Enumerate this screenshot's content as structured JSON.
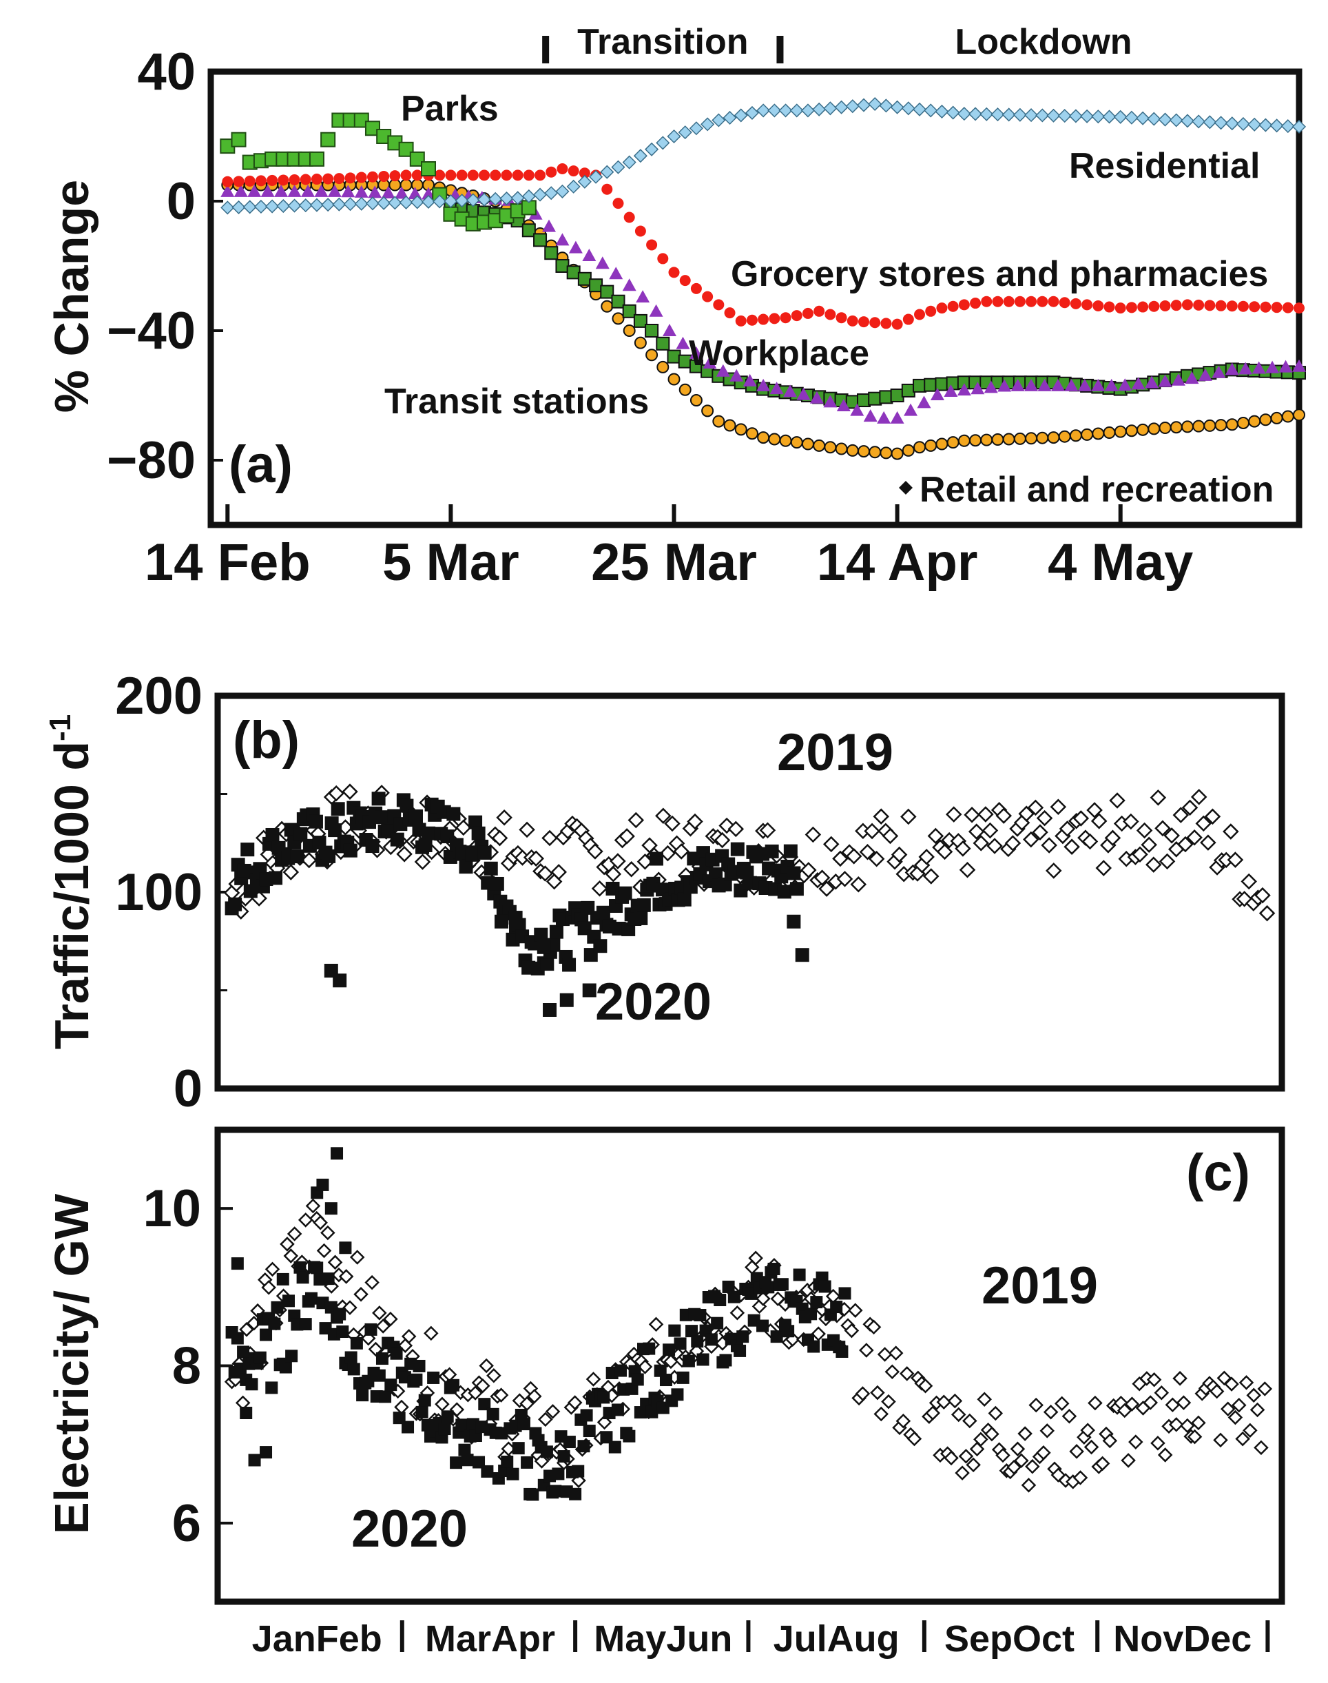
{
  "colors": {
    "parks": "#4cb82e",
    "grocery": "#f01f16",
    "residential": "#9ed2ee",
    "workplace": "#8e35bd",
    "transit": "#3f9a2a",
    "retail_fill": "#f4a71f",
    "retail_edge": "#111111"
  },
  "chart_data": [
    {
      "type": "scatter",
      "panel": "(a)",
      "ylabel": "% Change",
      "ylim": [
        -100,
        40
      ],
      "yticks": [
        40,
        0,
        -40,
        -80
      ],
      "xlim": [
        -1.5,
        96
      ],
      "xticks": [
        {
          "label": "14 Feb",
          "x": 0
        },
        {
          "label": "5 Mar",
          "x": 20
        },
        {
          "label": "25 Mar",
          "x": 40
        },
        {
          "label": "14 Apr",
          "x": 60
        },
        {
          "label": "4 May",
          "x": 80
        }
      ],
      "phases": [
        {
          "label": "Transition",
          "start": 28.5,
          "end": 49.5
        },
        {
          "label": "Lockdown",
          "start": 49.5,
          "end": 96
        }
      ],
      "annotations": {
        "parks": "Parks",
        "residential": "Residential",
        "grocery": "Grocery stores and pharmacies",
        "workplace": "Workplace",
        "transit": "Transit stations",
        "retail": "Retail and recreation"
      },
      "series": [
        {
          "name": "Residential",
          "marker": "diamond",
          "knots": [
            [
              0,
              -2
            ],
            [
              20,
              0
            ],
            [
              26,
              1
            ],
            [
              30,
              3
            ],
            [
              36,
              12
            ],
            [
              40,
              20
            ],
            [
              44,
              25
            ],
            [
              48,
              28
            ],
            [
              52,
              28
            ],
            [
              58,
              30
            ],
            [
              60,
              29
            ],
            [
              66,
              27
            ],
            [
              80,
              26
            ],
            [
              90,
              24
            ],
            [
              96,
              23
            ]
          ]
        },
        {
          "name": "Parks",
          "marker": "square",
          "knots": [
            [
              0,
              17
            ],
            [
              1,
              19
            ],
            [
              2,
              12
            ],
            [
              4,
              13
            ],
            [
              8,
              13
            ],
            [
              10,
              25
            ],
            [
              12,
              25
            ],
            [
              14,
              20
            ],
            [
              16,
              16
            ],
            [
              18,
              10
            ],
            [
              19,
              2
            ],
            [
              20,
              -4
            ],
            [
              22,
              -7
            ],
            [
              24,
              -6
            ],
            [
              26,
              -3
            ],
            [
              27,
              -2
            ]
          ]
        },
        {
          "name": "Grocery stores and pharmacies",
          "marker": "circle",
          "knots": [
            [
              0,
              6
            ],
            [
              10,
              7
            ],
            [
              16,
              8
            ],
            [
              24,
              8
            ],
            [
              28,
              8
            ],
            [
              30,
              10
            ],
            [
              33,
              8
            ],
            [
              36,
              -5
            ],
            [
              40,
              -22
            ],
            [
              44,
              -32
            ],
            [
              46,
              -37
            ],
            [
              50,
              -36
            ],
            [
              53,
              -34
            ],
            [
              56,
              -37
            ],
            [
              60,
              -38
            ],
            [
              62,
              -35
            ],
            [
              64,
              -33
            ],
            [
              68,
              -31
            ],
            [
              74,
              -31
            ],
            [
              80,
              -33
            ],
            [
              86,
              -32
            ],
            [
              96,
              -33
            ]
          ]
        },
        {
          "name": "Workplace",
          "marker": "triangle",
          "knots": [
            [
              0,
              3
            ],
            [
              10,
              3
            ],
            [
              20,
              2
            ],
            [
              26,
              0
            ],
            [
              28,
              -5
            ],
            [
              30,
              -12
            ],
            [
              34,
              -20
            ],
            [
              38,
              -32
            ],
            [
              40,
              -42
            ],
            [
              44,
              -52
            ],
            [
              48,
              -57
            ],
            [
              52,
              -60
            ],
            [
              56,
              -64
            ],
            [
              58,
              -67
            ],
            [
              60,
              -67
            ],
            [
              62,
              -63
            ],
            [
              64,
              -59
            ],
            [
              70,
              -57
            ],
            [
              80,
              -57
            ],
            [
              86,
              -55
            ],
            [
              90,
              -52
            ],
            [
              96,
              -51
            ]
          ]
        },
        {
          "name": "Transit stations",
          "marker": "square",
          "knots": [
            [
              20,
              -2
            ],
            [
              24,
              -4
            ],
            [
              26,
              -6
            ],
            [
              28,
              -12
            ],
            [
              30,
              -20
            ],
            [
              34,
              -28
            ],
            [
              38,
              -40
            ],
            [
              40,
              -48
            ],
            [
              44,
              -54
            ],
            [
              48,
              -58
            ],
            [
              52,
              -60
            ],
            [
              56,
              -62
            ],
            [
              60,
              -60
            ],
            [
              62,
              -57
            ],
            [
              66,
              -56
            ],
            [
              74,
              -56
            ],
            [
              80,
              -58
            ],
            [
              86,
              -54
            ],
            [
              90,
              -52
            ],
            [
              96,
              -53
            ]
          ]
        },
        {
          "name": "Retail and recreation",
          "marker": "circle-edged",
          "knots": [
            [
              0,
              5
            ],
            [
              10,
              5
            ],
            [
              18,
              5
            ],
            [
              24,
              0
            ],
            [
              28,
              -10
            ],
            [
              32,
              -25
            ],
            [
              36,
              -40
            ],
            [
              40,
              -55
            ],
            [
              44,
              -68
            ],
            [
              48,
              -73
            ],
            [
              52,
              -75
            ],
            [
              56,
              -77
            ],
            [
              60,
              -78
            ],
            [
              62,
              -76
            ],
            [
              66,
              -74
            ],
            [
              74,
              -73
            ],
            [
              84,
              -70
            ],
            [
              90,
              -69
            ],
            [
              96,
              -66
            ]
          ]
        }
      ]
    },
    {
      "type": "scatter",
      "panel": "(b)",
      "ylabel": "Traffic/1000 d",
      "ylabel_sup": "-1",
      "ylim": [
        0,
        200
      ],
      "yticks": [
        0,
        100,
        200
      ],
      "xlim": [
        -5,
        370
      ],
      "labels": {
        "y2019": "2019",
        "y2020": "2020"
      },
      "series": [
        {
          "name": "2019",
          "marker": "open-diamond",
          "knots": [
            [
              0,
              100
            ],
            [
              20,
              125
            ],
            [
              40,
              135
            ],
            [
              60,
              132
            ],
            [
              80,
              128
            ],
            [
              100,
              120
            ],
            [
              120,
              118
            ],
            [
              160,
              122
            ],
            [
              200,
              118
            ],
            [
              240,
              125
            ],
            [
              280,
              125
            ],
            [
              320,
              130
            ],
            [
              340,
              135
            ],
            [
              350,
              120
            ],
            [
              365,
              95
            ]
          ],
          "spread": 18
        },
        {
          "name": "2020",
          "marker": "filled-square",
          "knots": [
            [
              0,
              105
            ],
            [
              20,
              125
            ],
            [
              40,
              130
            ],
            [
              60,
              138
            ],
            [
              80,
              128
            ],
            [
              90,
              118
            ],
            [
              100,
              80
            ],
            [
              105,
              75
            ],
            [
              115,
              75
            ],
            [
              125,
              80
            ],
            [
              135,
              90
            ],
            [
              145,
              100
            ],
            [
              150,
              105
            ],
            [
              170,
              110
            ],
            [
              180,
              112
            ],
            [
              200,
              115
            ]
          ],
          "spread": 14
        },
        {
          "name": "2020-outliers",
          "marker": "filled-square",
          "points": [
            [
              35,
              60
            ],
            [
              38,
              55
            ],
            [
              95,
              85
            ],
            [
              100,
              87
            ],
            [
              110,
              72
            ],
            [
              112,
              40
            ],
            [
              118,
              45
            ],
            [
              126,
              50
            ],
            [
              198,
              85
            ],
            [
              201,
              68
            ]
          ]
        }
      ]
    },
    {
      "type": "scatter",
      "panel": "(c)",
      "ylabel": "Electricity/ GW",
      "ylim": [
        5,
        11
      ],
      "yticks": [
        6,
        8,
        10
      ],
      "xlim": [
        -5,
        370
      ],
      "month_labels": [
        "JanFeb",
        "MarApr",
        "MayJun",
        "JulAug",
        "SepOct",
        "NovDec"
      ],
      "labels": {
        "y2019": "2019",
        "y2020": "2020"
      },
      "series": [
        {
          "name": "2019",
          "marker": "open-diamond",
          "knots": [
            [
              0,
              7.8
            ],
            [
              15,
              8.8
            ],
            [
              30,
              9.8
            ],
            [
              45,
              8.8
            ],
            [
              60,
              8.0
            ],
            [
              75,
              7.8
            ],
            [
              90,
              7.5
            ],
            [
              105,
              7.2
            ],
            [
              120,
              7.0
            ],
            [
              135,
              7.6
            ],
            [
              150,
              8.0
            ],
            [
              165,
              8.6
            ],
            [
              180,
              8.9
            ],
            [
              195,
              8.8
            ],
            [
              210,
              8.5
            ],
            [
              225,
              8.0
            ],
            [
              240,
              7.5
            ],
            [
              255,
              7.2
            ],
            [
              270,
              7.1
            ],
            [
              285,
              7.0
            ],
            [
              300,
              7.0
            ],
            [
              320,
              7.3
            ],
            [
              340,
              7.5
            ],
            [
              360,
              7.4
            ]
          ],
          "spread": 0.55
        },
        {
          "name": "2020",
          "marker": "filled-square",
          "knots": [
            [
              0,
              8.0
            ],
            [
              15,
              8.2
            ],
            [
              30,
              9.2
            ],
            [
              40,
              8.3
            ],
            [
              55,
              7.8
            ],
            [
              70,
              7.5
            ],
            [
              85,
              7.1
            ],
            [
              100,
              7.0
            ],
            [
              110,
              6.6
            ],
            [
              120,
              6.8
            ],
            [
              130,
              7.3
            ],
            [
              140,
              7.6
            ],
            [
              150,
              7.9
            ],
            [
              165,
              8.3
            ],
            [
              180,
              8.7
            ],
            [
              195,
              8.8
            ],
            [
              210,
              8.7
            ],
            [
              216,
              8.6
            ]
          ],
          "spread": 0.5
        },
        {
          "name": "2020-peaks",
          "marker": "filled-square",
          "points": [
            [
              2,
              9.3
            ],
            [
              18,
              9.1
            ],
            [
              30,
              10.2
            ],
            [
              32,
              10.3
            ],
            [
              35,
              10.0
            ],
            [
              37,
              10.7
            ],
            [
              40,
              9.5
            ],
            [
              5,
              7.4
            ],
            [
              8,
              6.8
            ],
            [
              12,
              6.9
            ]
          ]
        }
      ]
    }
  ]
}
